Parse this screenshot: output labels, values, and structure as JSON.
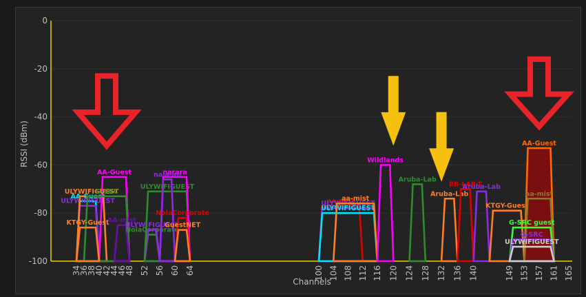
{
  "chart_data": {
    "type": "area",
    "y_axis_label": "RSSI (dBm)",
    "x_axis_label": "Channels",
    "ylim": [
      -100,
      0
    ],
    "y_ticks": [
      0,
      -20,
      -40,
      -60,
      -80,
      -100
    ],
    "x_ticks": [
      34,
      36,
      38,
      40,
      42,
      44,
      46,
      48,
      52,
      56,
      60,
      64,
      100,
      104,
      108,
      112,
      116,
      120,
      124,
      128,
      132,
      136,
      140,
      149,
      153,
      157,
      161,
      165
    ],
    "series": [
      {
        "name": "AA-Guest",
        "color": "#00e5ff",
        "x_start": 34,
        "x_end": 40,
        "y": -75
      },
      {
        "name": "ULYWIFIGUEST",
        "color": "#8a2be2",
        "x_start": 34,
        "x_end": 40,
        "y": -77
      },
      {
        "name": "AA-Guest",
        "color": "#ff00ff",
        "x_start": 40,
        "x_end": 48,
        "y": -65
      },
      {
        "name": "ULYWIFIGUEST",
        "color": "#ff7f27",
        "x_start": 34,
        "x_end": 42,
        "y": -73
      },
      {
        "name": "G-SRC",
        "color": "#2e8b2e",
        "x_start": 36,
        "x_end": 48,
        "y": -73
      },
      {
        "name": "KTGY-Guest",
        "color": "#ff7f27",
        "x_start": 34,
        "x_end": 40,
        "y": -86
      },
      {
        "name": "AA-mist",
        "color": "#6a0dad",
        "x_start": 44,
        "x_end": 48,
        "y": -85
      },
      {
        "name": "NolaCorporate",
        "color": "#2e8b2e",
        "x_start": 52,
        "x_end": 56,
        "y": -89
      },
      {
        "name": "ULYWIFIGUEST",
        "color": "#8a2be2",
        "x_start": 52,
        "x_end": 56,
        "y": -87
      },
      {
        "name": "ULYWIFIGUEST",
        "color": "#2e8b2e",
        "x_start": 52,
        "x_end": 64,
        "y": -71
      },
      {
        "name": "narara",
        "color": "#ff00ff",
        "x_start": 56,
        "x_end": 64,
        "y": -65
      },
      {
        "name": "nala-ap",
        "color": "#8a2be2",
        "x_start": 56,
        "x_end": 60,
        "y": -66
      },
      {
        "name": "NolaCorporate",
        "color": "#e00000",
        "x_start": 60,
        "x_end": 64,
        "y": -82
      },
      {
        "name": "GuestNET",
        "color": "#ff7f27",
        "x_start": 60,
        "x_end": 64,
        "y": -87
      },
      {
        "name": "aa-mist",
        "color": "#e00000",
        "x_start": 100,
        "x_end": 112,
        "y": -77
      },
      {
        "name": "ULYWIFIGUEST",
        "color": "#8a2be2",
        "x_start": 100,
        "x_end": 116,
        "y": -78
      },
      {
        "name": "ULYWIFIGUEST",
        "color": "#00e5ff",
        "x_start": 100,
        "x_end": 116,
        "y": -80
      },
      {
        "name": "aa-mist",
        "color": "#ff7f27",
        "x_start": 104,
        "x_end": 116,
        "y": -76
      },
      {
        "name": "Wildlands",
        "color": "#ff00ff",
        "x_start": 116,
        "x_end": 120,
        "y": -60
      },
      {
        "name": "Aruba-Lab",
        "color": "#2e8b2e",
        "x_start": 124,
        "x_end": 128,
        "y": -68
      },
      {
        "name": "Aruba-Lab",
        "color": "#ff7f27",
        "x_start": 132,
        "x_end": 136,
        "y": -74
      },
      {
        "name": "BB-LAB-T",
        "color": "#e00000",
        "x_start": 136,
        "x_end": 140,
        "y": -70
      },
      {
        "name": "Aruba-Lab",
        "color": "#8a2be2",
        "x_start": 140,
        "x_end": 144,
        "y": -71
      },
      {
        "name": "KTGY-Guest",
        "color": "#ff7f27",
        "x_start": 144,
        "x_end": 153,
        "y": -79
      },
      {
        "name": "AA-Guest",
        "color": "#ff6a00",
        "x_start": 153,
        "x_end": 161,
        "y": -53,
        "filled": true
      },
      {
        "name": "aa-mist",
        "color": "#8a7a2a",
        "x_start": 153,
        "x_end": 161,
        "y": -74
      },
      {
        "name": "G-SRC guest",
        "color": "#33ff33",
        "x_start": 149,
        "x_end": 161,
        "y": -86
      },
      {
        "name": "G-SRC",
        "color": "#8a2be2",
        "x_start": 149,
        "x_end": 161,
        "y": -91
      },
      {
        "name": "ULYWIFIGUEST",
        "color": "#cccccc",
        "x_start": 149,
        "x_end": 161,
        "y": -94
      }
    ],
    "annotations": [
      {
        "type": "arrow",
        "color": "#e8232a",
        "style": "hollow",
        "at_x": 42,
        "from_y": -23,
        "to_y": -52
      },
      {
        "type": "arrow",
        "color": "#f5c010",
        "style": "solid",
        "at_x": 120,
        "from_y": -23,
        "to_y": -52
      },
      {
        "type": "arrow",
        "color": "#f5c010",
        "style": "solid",
        "at_x": 132,
        "from_y": -38,
        "to_y": -67
      },
      {
        "type": "arrow",
        "color": "#e8232a",
        "style": "hollow",
        "at_x": 157,
        "from_y": -16,
        "to_y": -44
      }
    ]
  }
}
